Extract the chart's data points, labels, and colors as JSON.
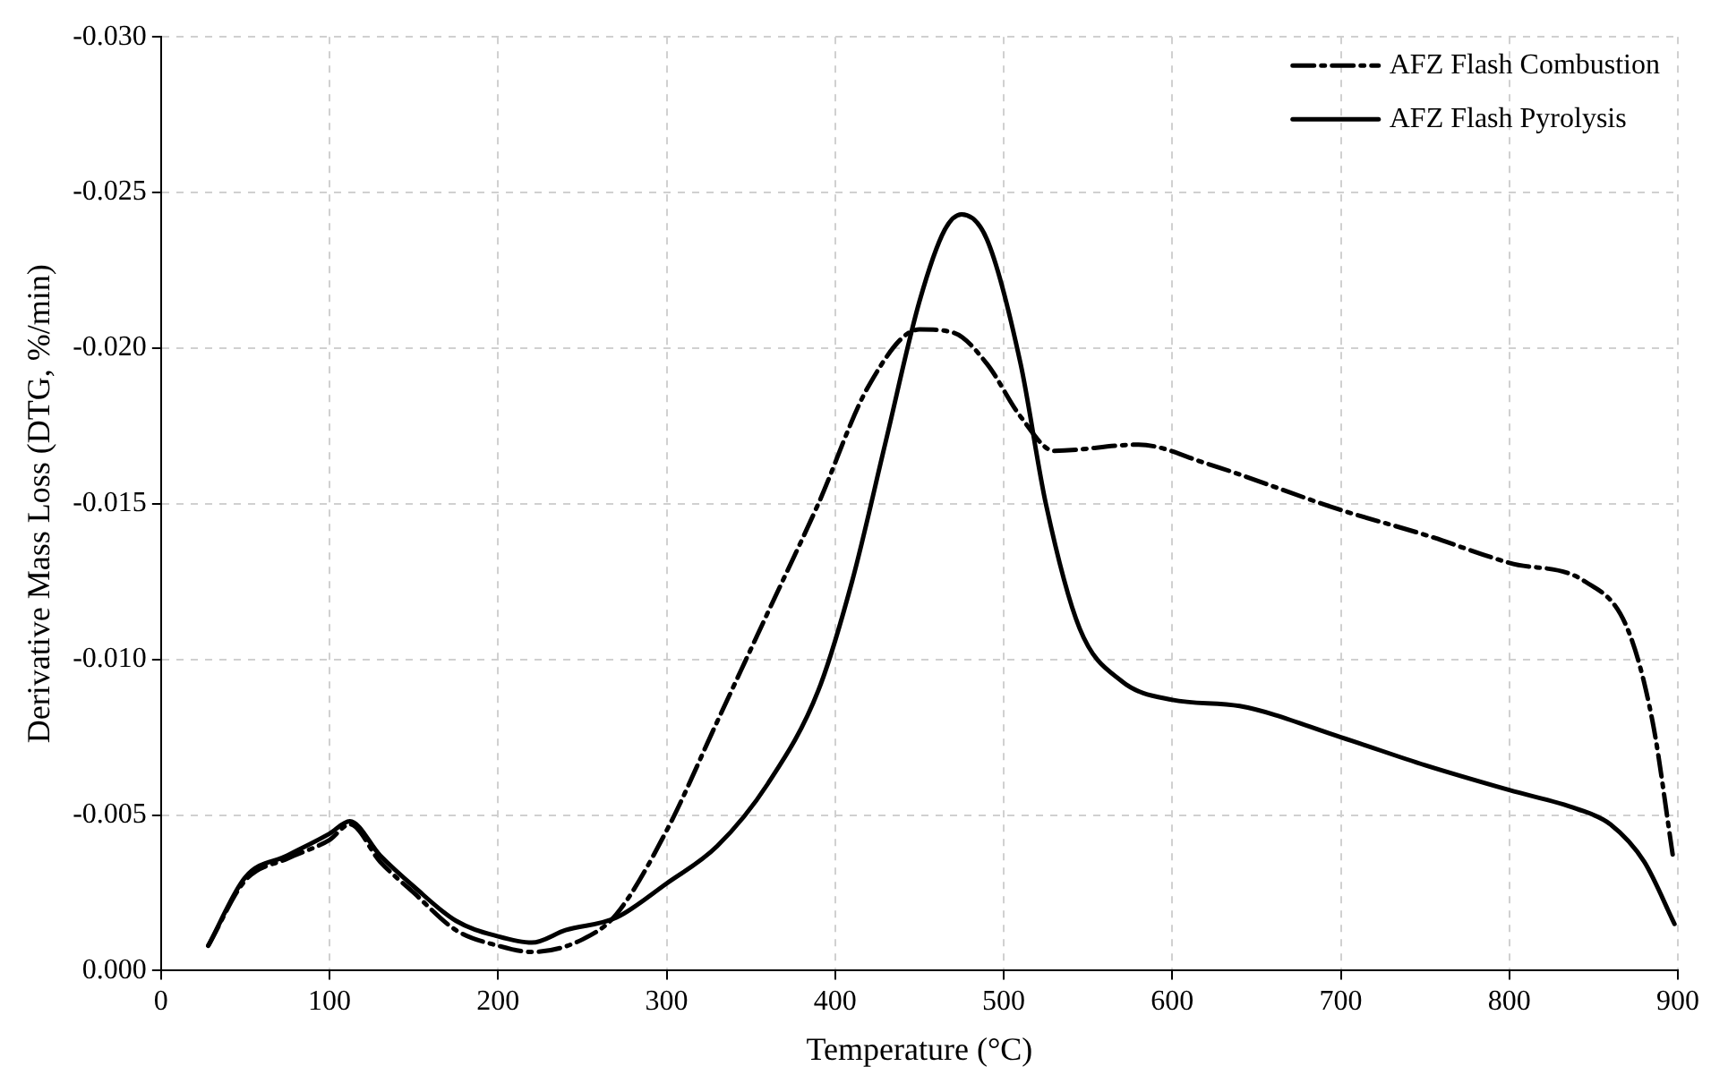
{
  "chart_data": {
    "type": "line",
    "xlabel": "Temperature (°C)",
    "ylabel": "Derivative Mass Loss (DTG, %/min)",
    "xlim": [
      0,
      900
    ],
    "xticks": [
      0,
      100,
      200,
      300,
      400,
      500,
      600,
      700,
      800,
      900
    ],
    "ylim": [
      0,
      -0.03
    ],
    "yticks": [
      {
        "value": 0,
        "label": "0.000"
      },
      {
        "value": -0.005,
        "label": "-0.005"
      },
      {
        "value": -0.01,
        "label": "-0.010"
      },
      {
        "value": -0.015,
        "label": "-0.015"
      },
      {
        "value": -0.02,
        "label": "-0.020"
      },
      {
        "value": -0.025,
        "label": "-0.025"
      },
      {
        "value": -0.03,
        "label": "-0.030"
      }
    ],
    "grid": true,
    "legend": "top right",
    "marker": "none",
    "series": [
      {
        "name": "AFZ Flash Combustion",
        "color": "#000000",
        "line_style": "dashed",
        "x": [
          28,
          50,
          75,
          100,
          112,
          130,
          150,
          175,
          200,
          220,
          250,
          270,
          300,
          330,
          360,
          390,
          420,
          450,
          470,
          490,
          510,
          530,
          580,
          620,
          700,
          750,
          800,
          845,
          870,
          885,
          897
        ],
        "values": [
          -0.0008,
          -0.0029,
          -0.0036,
          -0.0042,
          -0.0047,
          -0.0035,
          -0.0025,
          -0.0013,
          -0.0008,
          -0.0006,
          -0.001,
          -0.0018,
          -0.0045,
          -0.008,
          -0.0115,
          -0.015,
          -0.0188,
          -0.0206,
          -0.0205,
          -0.0195,
          -0.0178,
          -0.0167,
          -0.0169,
          -0.0163,
          -0.0148,
          -0.014,
          -0.0131,
          -0.0125,
          -0.011,
          -0.008,
          -0.0037
        ]
      },
      {
        "name": "AFZ Flash Pyrolysis",
        "color": "#000000",
        "line_style": "solid",
        "x": [
          28,
          50,
          75,
          100,
          112,
          130,
          150,
          175,
          200,
          220,
          240,
          270,
          300,
          330,
          360,
          390,
          410,
          430,
          450,
          465,
          475,
          490,
          510,
          525,
          545,
          570,
          600,
          640,
          700,
          750,
          800,
          840,
          860,
          880,
          898
        ],
        "values": [
          -0.0008,
          -0.003,
          -0.0037,
          -0.0044,
          -0.0048,
          -0.0037,
          -0.0027,
          -0.0016,
          -0.0011,
          -0.0009,
          -0.0013,
          -0.0017,
          -0.0028,
          -0.004,
          -0.006,
          -0.009,
          -0.0125,
          -0.017,
          -0.0215,
          -0.0238,
          -0.0243,
          -0.0235,
          -0.0195,
          -0.015,
          -0.011,
          -0.0093,
          -0.0087,
          -0.0085,
          -0.0075,
          -0.0066,
          -0.0058,
          -0.0052,
          -0.0047,
          -0.0035,
          -0.0015
        ]
      }
    ]
  }
}
